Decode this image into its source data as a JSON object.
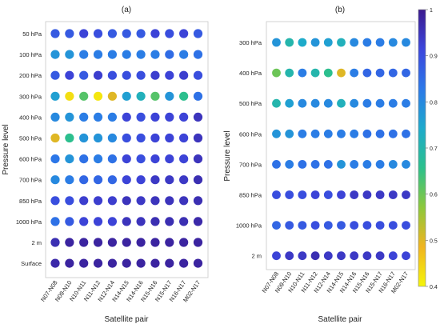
{
  "colormap": {
    "stops": [
      "#f5f50a",
      "#f0b420",
      "#8cc83c",
      "#2cc08c",
      "#1eaacc",
      "#2c78e8",
      "#3c46dc",
      "#3b1a8e"
    ],
    "ticks": [
      "0.4",
      "0.5",
      "0.6",
      "0.7",
      "0.8",
      "0.9",
      "1"
    ],
    "tick_values": [
      0.4,
      0.5,
      0.6,
      0.7,
      0.8,
      0.9,
      1.0
    ],
    "range": [
      0.4,
      1.0
    ]
  },
  "chart_data": [
    {
      "type": "scatter",
      "panel_label": "(a)",
      "xlabel": "Satellite pair",
      "ylabel": "Pressure level",
      "x_categories": [
        "N07-N08",
        "N09-N10",
        "N10-N11",
        "N11-N12",
        "N12-N14",
        "N14-N15",
        "N14-N16",
        "N15-N16",
        "N15-N17",
        "N16-N17",
        "M02-N17"
      ],
      "y_categories": [
        "50 hPa",
        "100 hPa",
        "200 hPa",
        "300 hPa",
        "400 hPa",
        "500 hPa",
        "600 hPa",
        "700 hPa",
        "850 hPa",
        "1000 hPa",
        "2 m",
        "Surface"
      ],
      "values": [
        [
          0.88,
          0.88,
          0.92,
          0.9,
          0.88,
          0.88,
          0.88,
          0.92,
          0.9,
          0.92,
          0.88
        ],
        [
          0.78,
          0.78,
          0.82,
          0.82,
          0.82,
          0.82,
          0.82,
          0.82,
          0.85,
          0.82,
          0.84
        ],
        [
          0.88,
          0.92,
          0.88,
          0.93,
          0.9,
          0.9,
          0.9,
          0.93,
          0.92,
          0.93,
          0.9
        ],
        [
          0.76,
          0.43,
          0.62,
          0.42,
          0.5,
          0.76,
          0.72,
          0.62,
          0.78,
          0.66,
          0.84
        ],
        [
          0.8,
          0.78,
          0.82,
          0.82,
          0.82,
          0.92,
          0.9,
          0.92,
          0.92,
          0.92,
          0.95
        ],
        [
          0.5,
          0.66,
          0.78,
          0.78,
          0.8,
          0.9,
          0.9,
          0.92,
          0.92,
          0.92,
          0.95
        ],
        [
          0.83,
          0.78,
          0.84,
          0.82,
          0.84,
          0.92,
          0.9,
          0.92,
          0.92,
          0.92,
          0.95
        ],
        [
          0.8,
          0.82,
          0.86,
          0.86,
          0.86,
          0.92,
          0.92,
          0.94,
          0.94,
          0.94,
          0.96
        ],
        [
          0.9,
          0.9,
          0.93,
          0.93,
          0.93,
          0.95,
          0.94,
          0.95,
          0.95,
          0.95,
          0.96
        ],
        [
          0.84,
          0.88,
          0.92,
          0.92,
          0.92,
          0.95,
          0.95,
          0.96,
          0.96,
          0.96,
          0.97
        ],
        [
          0.96,
          0.98,
          0.98,
          0.98,
          0.98,
          0.98,
          0.98,
          0.98,
          0.98,
          0.98,
          0.98
        ],
        [
          0.97,
          0.98,
          0.98,
          0.98,
          0.98,
          0.98,
          0.98,
          0.98,
          0.98,
          0.98,
          0.98
        ]
      ]
    },
    {
      "type": "scatter",
      "panel_label": "(b)",
      "xlabel": "Satellite pair",
      "ylabel": "Pressure level",
      "x_categories": [
        "N07-N08",
        "N09-N10",
        "N10-N11",
        "N11-N12",
        "N12-N14",
        "N14-N15",
        "N14-N16",
        "N15-N16",
        "N15-N17",
        "N16-N17",
        "M02-N17"
      ],
      "y_categories": [
        "300 hPa",
        "400 hPa",
        "500 hPa",
        "600 hPa",
        "700 hPa",
        "850 hPa",
        "1000 hPa",
        "2 m"
      ],
      "values": [
        [
          0.78,
          0.7,
          0.74,
          0.78,
          0.76,
          0.72,
          0.8,
          0.82,
          0.82,
          0.8,
          0.8
        ],
        [
          0.6,
          0.7,
          0.82,
          0.7,
          0.66,
          0.5,
          0.82,
          0.86,
          0.86,
          0.86,
          0.86
        ],
        [
          0.7,
          0.76,
          0.8,
          0.8,
          0.8,
          0.72,
          0.8,
          0.82,
          0.82,
          0.82,
          0.82
        ],
        [
          0.78,
          0.78,
          0.82,
          0.82,
          0.82,
          0.82,
          0.82,
          0.84,
          0.84,
          0.84,
          0.84
        ],
        [
          0.84,
          0.82,
          0.84,
          0.84,
          0.84,
          0.78,
          0.82,
          0.82,
          0.82,
          0.8,
          0.8
        ],
        [
          0.9,
          0.9,
          0.9,
          0.92,
          0.9,
          0.92,
          0.94,
          0.94,
          0.94,
          0.94,
          0.94
        ],
        [
          0.86,
          0.88,
          0.88,
          0.9,
          0.88,
          0.88,
          0.9,
          0.9,
          0.9,
          0.9,
          0.9
        ],
        [
          0.92,
          0.94,
          0.94,
          0.96,
          0.94,
          0.94,
          0.94,
          0.94,
          0.94,
          0.92,
          0.92
        ]
      ]
    }
  ]
}
